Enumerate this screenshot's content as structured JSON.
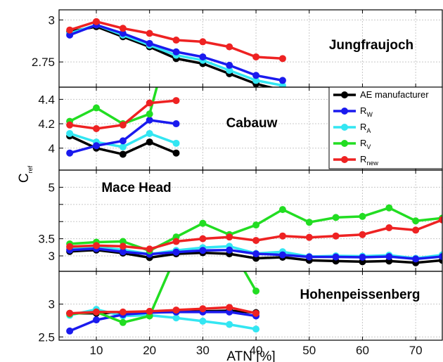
{
  "chart_data": {
    "type": "line",
    "xlabel": "ATN [%]",
    "ylabel": "C",
    "ylabel_sub": "ref",
    "xlim": [
      3,
      75
    ],
    "xticks": [
      "10",
      "20",
      "30",
      "40",
      "50",
      "60",
      "70"
    ],
    "grid": true,
    "legend": {
      "placement": "inside Cabauw panel, right",
      "entries": [
        {
          "key": "ae",
          "label": "AE manufacturer",
          "sub": ""
        },
        {
          "key": "rw",
          "label": "R",
          "sub": "W"
        },
        {
          "key": "ra",
          "label": "R",
          "sub": "A"
        },
        {
          "key": "rv",
          "label": "R",
          "sub": "V"
        },
        {
          "key": "rnew",
          "label": "R",
          "sub": "new"
        }
      ]
    },
    "colors": {
      "ae": "#000000",
      "rw": "#1a1aee",
      "ra": "#33e6f2",
      "rv": "#22dd22",
      "rnew": "#ee2222"
    },
    "panels": [
      {
        "name": "Jungfraujoch",
        "ylim": [
          2.6,
          3.06
        ],
        "yticks": [
          {
            "v": 2.75,
            "label": "2.75"
          },
          {
            "v": 3.0,
            "label": "3"
          }
        ],
        "series": {
          "ae": {
            "x": [
              5,
              10,
              15,
              20,
              25,
              30,
              35,
              40,
              45
            ],
            "y": [
              2.93,
              2.96,
              2.9,
              2.84,
              2.77,
              2.74,
              2.68,
              2.62,
              2.58
            ]
          },
          "rw": {
            "x": [
              5,
              10,
              15,
              20,
              25,
              30,
              35,
              40,
              45
            ],
            "y": [
              2.91,
              2.97,
              2.92,
              2.86,
              2.81,
              2.78,
              2.73,
              2.67,
              2.64
            ]
          },
          "ra": {
            "x": [
              5,
              10,
              15,
              20,
              25,
              30,
              35,
              40,
              45
            ],
            "y": [
              2.92,
              2.97,
              2.91,
              2.85,
              2.79,
              2.76,
              2.7,
              2.64,
              2.61
            ]
          },
          "rv": {
            "x": [],
            "y": []
          },
          "rnew": {
            "x": [
              5,
              10,
              15,
              20,
              25,
              30,
              35,
              40,
              45
            ],
            "y": [
              2.94,
              2.99,
              2.95,
              2.92,
              2.88,
              2.87,
              2.84,
              2.78,
              2.77
            ]
          }
        }
      },
      {
        "name": "Cabauw",
        "ylim": [
          3.82,
          4.5
        ],
        "yticks": [
          {
            "v": 4.0,
            "label": "4"
          },
          {
            "v": 4.2,
            "label": "4.2"
          },
          {
            "v": 4.4,
            "label": "4.4"
          }
        ],
        "series": {
          "ae": {
            "x": [
              5,
              10,
              15,
              20,
              25
            ],
            "y": [
              4.1,
              4.0,
              3.95,
              4.05,
              3.96
            ]
          },
          "rw": {
            "x": [
              5,
              10,
              15,
              20,
              25
            ],
            "y": [
              3.96,
              4.02,
              4.06,
              4.23,
              4.2
            ]
          },
          "ra": {
            "x": [
              5,
              10,
              15,
              20,
              25
            ],
            "y": [
              4.12,
              4.05,
              4.01,
              4.12,
              4.04
            ]
          },
          "rv": {
            "x": [
              5,
              10,
              15,
              20,
              22
            ],
            "y": [
              4.22,
              4.33,
              4.2,
              4.28,
              4.6
            ]
          },
          "rnew": {
            "x": [
              5,
              10,
              15,
              20,
              25
            ],
            "y": [
              4.19,
              4.16,
              4.19,
              4.37,
              4.39
            ]
          }
        }
      },
      {
        "name": "Mace Head",
        "ylim": [
          2.55,
          5.5
        ],
        "yticks": [
          {
            "v": 3.0,
            "label": "3"
          },
          {
            "v": 3.5,
            "label": "3.5"
          },
          {
            "v": 4.0,
            "label": ""
          },
          {
            "v": 4.5,
            "label": ""
          },
          {
            "v": 5.0,
            "label": "5"
          }
        ],
        "series": {
          "ae": {
            "x": [
              5,
              10,
              15,
              20,
              25,
              30,
              35,
              40,
              45,
              50,
              55,
              60,
              65,
              70,
              75
            ],
            "y": [
              3.13,
              3.17,
              3.08,
              2.95,
              3.06,
              3.09,
              3.06,
              2.93,
              2.96,
              2.87,
              2.85,
              2.83,
              2.85,
              2.8,
              2.87
            ]
          },
          "rw": {
            "x": [
              5,
              10,
              15,
              20,
              25,
              30,
              35,
              40,
              45,
              50,
              55,
              60,
              65,
              70,
              75
            ],
            "y": [
              3.17,
              3.21,
              3.12,
              3.05,
              3.11,
              3.16,
              3.17,
              3.06,
              3.03,
              2.97,
              2.97,
              2.96,
              2.98,
              2.91,
              2.98
            ]
          },
          "ra": {
            "x": [
              5,
              10,
              15,
              20,
              25,
              30,
              35,
              40,
              45,
              50,
              55,
              60,
              65,
              70,
              75
            ],
            "y": [
              3.22,
              3.25,
              3.18,
              3.05,
              3.16,
              3.24,
              3.28,
              3.07,
              3.12,
              2.98,
              3.0,
              2.99,
              3.02,
              2.93,
              3.03
            ]
          },
          "rv": {
            "x": [
              5,
              10,
              15,
              20,
              25,
              30,
              35,
              40,
              45,
              50,
              55,
              60,
              65,
              70,
              75
            ],
            "y": [
              3.35,
              3.4,
              3.42,
              3.15,
              3.55,
              3.95,
              3.62,
              3.9,
              4.35,
              3.98,
              4.12,
              4.15,
              4.4,
              4.02,
              4.1
            ]
          },
          "rnew": {
            "x": [
              5,
              10,
              15,
              20,
              25,
              30,
              35,
              40,
              45,
              50,
              55,
              60,
              65,
              70,
              75
            ],
            "y": [
              3.27,
              3.3,
              3.28,
              3.2,
              3.42,
              3.5,
              3.55,
              3.45,
              3.58,
              3.54,
              3.58,
              3.62,
              3.82,
              3.75,
              4.05
            ]
          }
        }
      },
      {
        "name": "Hohenpeissenberg",
        "ylim": [
          2.45,
          3.5
        ],
        "yticks": [
          {
            "v": 2.5,
            "label": "2.5"
          },
          {
            "v": 3.0,
            "label": "3"
          }
        ],
        "series": {
          "ae": {
            "x": [
              5,
              10,
              15,
              20,
              25,
              30,
              35,
              40
            ],
            "y": [
              2.86,
              2.86,
              2.87,
              2.88,
              2.88,
              2.89,
              2.9,
              2.87
            ]
          },
          "rw": {
            "x": [
              5,
              10,
              15,
              20,
              25,
              30,
              35,
              40
            ],
            "y": [
              2.59,
              2.76,
              2.84,
              2.87,
              2.88,
              2.88,
              2.88,
              2.82
            ]
          },
          "ra": {
            "x": [
              5,
              10,
              15,
              20,
              25,
              30,
              35,
              40
            ],
            "y": [
              2.83,
              2.92,
              2.82,
              2.83,
              2.79,
              2.74,
              2.69,
              2.62
            ]
          },
          "rv": {
            "x": [
              5,
              10,
              15,
              20,
              25,
              30,
              35,
              37,
              40
            ],
            "y": [
              2.85,
              2.88,
              2.72,
              2.82,
              3.75,
              3.75,
              3.75,
              3.62,
              3.2
            ]
          },
          "rnew": {
            "x": [
              5,
              10,
              15,
              20,
              25,
              30,
              35,
              40
            ],
            "y": [
              2.86,
              2.88,
              2.88,
              2.89,
              2.91,
              2.93,
              2.95,
              2.86
            ]
          }
        }
      }
    ]
  }
}
